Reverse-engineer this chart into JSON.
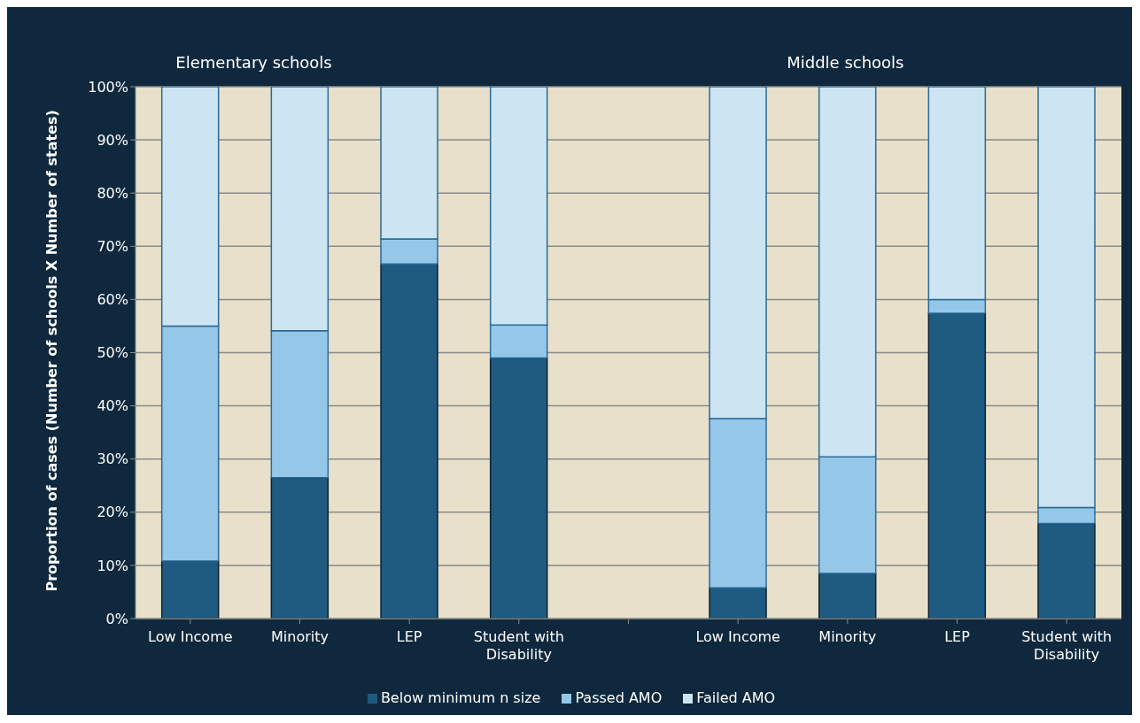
{
  "chart_data": {
    "type": "bar",
    "stacked": true,
    "categories": [
      "Low Income",
      "Minority",
      "LEP",
      "Student with Disability",
      null,
      "Low Income",
      "Minority",
      "LEP",
      "Student with Disability"
    ],
    "series": [
      {
        "name": "Below minimum n size",
        "color": "#1f5a80",
        "values": [
          10.8,
          26.5,
          66.7,
          49.0,
          null,
          5.8,
          8.5,
          57.4,
          17.9
        ]
      },
      {
        "name": "Passed AMO",
        "color": "#95c7e8",
        "values": [
          44.2,
          27.6,
          4.7,
          6.2,
          null,
          31.8,
          21.9,
          2.6,
          3.0
        ]
      },
      {
        "name": "Failed AMO",
        "color": "#cde4f3",
        "values": [
          45.0,
          45.9,
          28.6,
          44.8,
          null,
          62.4,
          69.6,
          40.0,
          79.1
        ]
      }
    ],
    "ylabel": "Proportion of cases (Number of schools X Number of states)",
    "ylim": [
      0,
      100
    ],
    "yticks": [
      {
        "value": 0,
        "label": "0%"
      },
      {
        "value": 10,
        "label": "10%"
      },
      {
        "value": 20,
        "label": "20%"
      },
      {
        "value": 30,
        "label": "30%"
      },
      {
        "value": 40,
        "label": "40%"
      },
      {
        "value": 50,
        "label": "50%"
      },
      {
        "value": 60,
        "label": "60%"
      },
      {
        "value": 70,
        "label": "70%"
      },
      {
        "value": 80,
        "label": "80%"
      },
      {
        "value": 90,
        "label": "90%"
      },
      {
        "value": 100,
        "label": "100%"
      }
    ],
    "annotations": [
      "Elementary schools",
      "Middle schools"
    ],
    "grid": "y",
    "legend": "bottom"
  }
}
